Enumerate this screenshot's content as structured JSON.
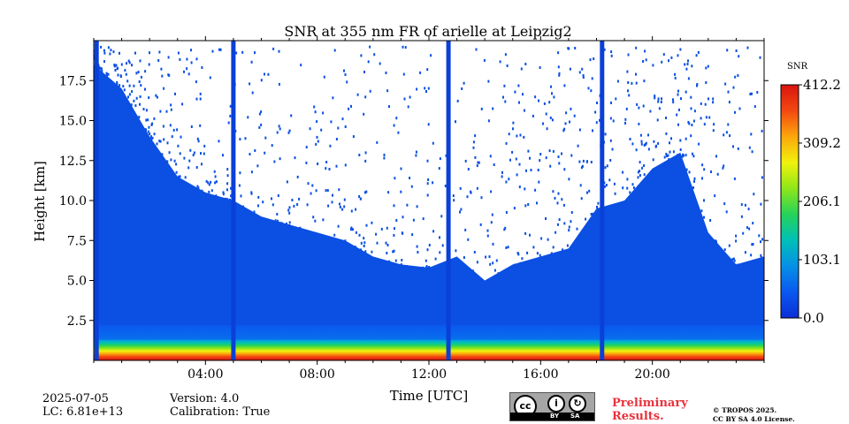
{
  "chart_data": {
    "type": "heatmap",
    "title": "SNR at 355 nm FR of arielle at Leipzig2",
    "xlabel": "Time [UTC]",
    "ylabel": "Height [km]",
    "xlim": [
      0,
      24
    ],
    "ylim": [
      0,
      20
    ],
    "x_ticks": [
      "04:00",
      "08:00",
      "12:00",
      "16:00",
      "20:00"
    ],
    "x_tick_values": [
      4,
      8,
      12,
      16,
      20
    ],
    "y_ticks": [
      "2.5",
      "5.0",
      "7.5",
      "10.0",
      "12.5",
      "15.0",
      "17.5"
    ],
    "y_tick_values": [
      2.5,
      5.0,
      7.5,
      10.0,
      12.5,
      15.0,
      17.5
    ],
    "colorbar": {
      "label": "SNR",
      "min": 0.0,
      "max": 412.2,
      "ticks": [
        "0.0",
        "103.1",
        "206.1",
        "309.2",
        "412.2"
      ],
      "tick_values": [
        0.0,
        103.1,
        206.1,
        309.2,
        412.2
      ],
      "colormap": [
        "#0b2fd6",
        "#0a58f0",
        "#0590e6",
        "#00c0b8",
        "#25d35a",
        "#8ee619",
        "#f1f20c",
        "#fca70c",
        "#f24811",
        "#d9140f"
      ]
    },
    "signal_top_profile": [
      {
        "t": 0.0,
        "top_km": 18.5
      },
      {
        "t": 1.0,
        "top_km": 17.0
      },
      {
        "t": 2.0,
        "top_km": 14.0
      },
      {
        "t": 3.0,
        "top_km": 11.5
      },
      {
        "t": 4.0,
        "top_km": 10.5
      },
      {
        "t": 5.0,
        "top_km": 10.0
      },
      {
        "t": 6.0,
        "top_km": 9.0
      },
      {
        "t": 7.0,
        "top_km": 8.5
      },
      {
        "t": 8.0,
        "top_km": 8.0
      },
      {
        "t": 9.0,
        "top_km": 7.5
      },
      {
        "t": 10.0,
        "top_km": 6.5
      },
      {
        "t": 11.0,
        "top_km": 6.0
      },
      {
        "t": 12.0,
        "top_km": 5.8
      },
      {
        "t": 13.0,
        "top_km": 6.5
      },
      {
        "t": 14.0,
        "top_km": 5.0
      },
      {
        "t": 15.0,
        "top_km": 6.0
      },
      {
        "t": 16.0,
        "top_km": 6.5
      },
      {
        "t": 17.0,
        "top_km": 7.0
      },
      {
        "t": 18.0,
        "top_km": 9.5
      },
      {
        "t": 19.0,
        "top_km": 10.0
      },
      {
        "t": 20.0,
        "top_km": 12.0
      },
      {
        "t": 21.0,
        "top_km": 13.0
      },
      {
        "t": 22.0,
        "top_km": 8.0
      },
      {
        "t": 23.0,
        "top_km": 6.0
      },
      {
        "t": 24.0,
        "top_km": 6.5
      }
    ],
    "gap_times": [
      0.1,
      5.0,
      12.7,
      18.2
    ]
  },
  "meta": {
    "date": "2025-07-05",
    "lc": "LC: 6.81e+13",
    "version": "Version: 4.0",
    "calibration": "Calibration: True"
  },
  "footer": {
    "preliminary_line1": "Preliminary",
    "preliminary_line2": "Results.",
    "copyright_line1": "© TROPOS 2025.",
    "copyright_line2": "CC BY SA 4.0 License.",
    "cc_badge": {
      "cc": "cc",
      "by": "BY",
      "sa": "SA"
    }
  }
}
